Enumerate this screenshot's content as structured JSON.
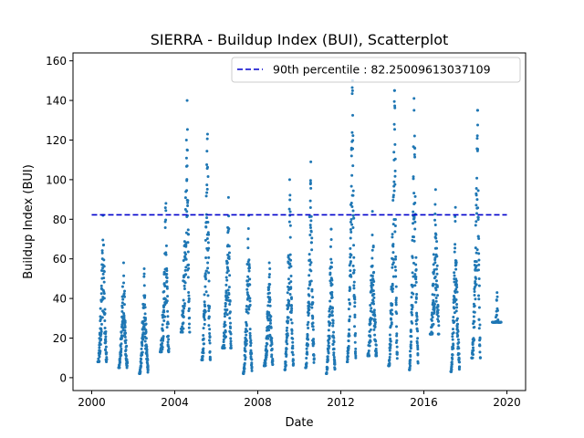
{
  "chart_data": {
    "type": "scatter",
    "title": "SIERRA - Buildup Index (BUI), Scatterplot",
    "xlabel": "Date",
    "ylabel": "Buildup Index (BUI)",
    "xlim": [
      1999.1,
      2020.9
    ],
    "ylim": [
      -6.5,
      164
    ],
    "xticks": [
      2000,
      2004,
      2008,
      2012,
      2016,
      2020
    ],
    "xtick_labels": [
      "2000",
      "2004",
      "2008",
      "2012",
      "2016",
      "2020"
    ],
    "yticks": [
      0,
      20,
      40,
      60,
      80,
      100,
      120,
      140,
      160
    ],
    "ytick_labels": [
      "0",
      "20",
      "40",
      "60",
      "80",
      "100",
      "120",
      "140",
      "160"
    ],
    "reference_line": {
      "label": "90th percentile : 82.25009613037109",
      "value": 82.25009613037109,
      "x_range": [
        2000.0,
        2020.0
      ],
      "style": "dashed",
      "color": "#0000cc"
    },
    "legend_position": "upper right",
    "series": [
      {
        "name": "BUI",
        "color": "#1f77b4",
        "season_peaks": [
          {
            "year": 2000,
            "start": 2000.3,
            "peak": 82,
            "end_value": 8
          },
          {
            "year": 2001,
            "start": 2001.3,
            "peak": 58,
            "end_value": 5
          },
          {
            "year": 2002,
            "start": 2002.3,
            "peak": 55,
            "end_value": 2
          },
          {
            "year": 2003,
            "start": 2003.3,
            "peak": 88,
            "end_value": 13
          },
          {
            "year": 2004,
            "start": 2004.3,
            "peak": 140,
            "end_value": 23
          },
          {
            "year": 2005,
            "start": 2005.3,
            "peak": 123,
            "end_value": 9
          },
          {
            "year": 2006,
            "start": 2006.3,
            "peak": 91,
            "end_value": 15
          },
          {
            "year": 2007,
            "start": 2007.3,
            "peak": 82,
            "end_value": 2
          },
          {
            "year": 2008,
            "start": 2008.3,
            "peak": 58,
            "end_value": 6
          },
          {
            "year": 2009,
            "start": 2009.3,
            "peak": 100,
            "end_value": 4
          },
          {
            "year": 2010,
            "start": 2010.3,
            "peak": 109,
            "end_value": 5
          },
          {
            "year": 2011,
            "start": 2011.3,
            "peak": 75,
            "end_value": 2
          },
          {
            "year": 2012,
            "start": 2012.3,
            "peak": 150,
            "end_value": 8
          },
          {
            "year": 2013,
            "start": 2013.3,
            "peak": 84,
            "end_value": 11
          },
          {
            "year": 2014,
            "start": 2014.3,
            "peak": 145,
            "end_value": 6
          },
          {
            "year": 2015,
            "start": 2015.3,
            "peak": 141,
            "end_value": 4
          },
          {
            "year": 2016,
            "start": 2016.3,
            "peak": 95,
            "end_value": 22
          },
          {
            "year": 2017,
            "start": 2017.3,
            "peak": 86,
            "end_value": 3
          },
          {
            "year": 2018,
            "start": 2018.3,
            "peak": 135,
            "end_value": 10
          },
          {
            "year": 2019,
            "start": 2019.3,
            "peak": 43,
            "end_value": 28
          }
        ]
      }
    ]
  }
}
